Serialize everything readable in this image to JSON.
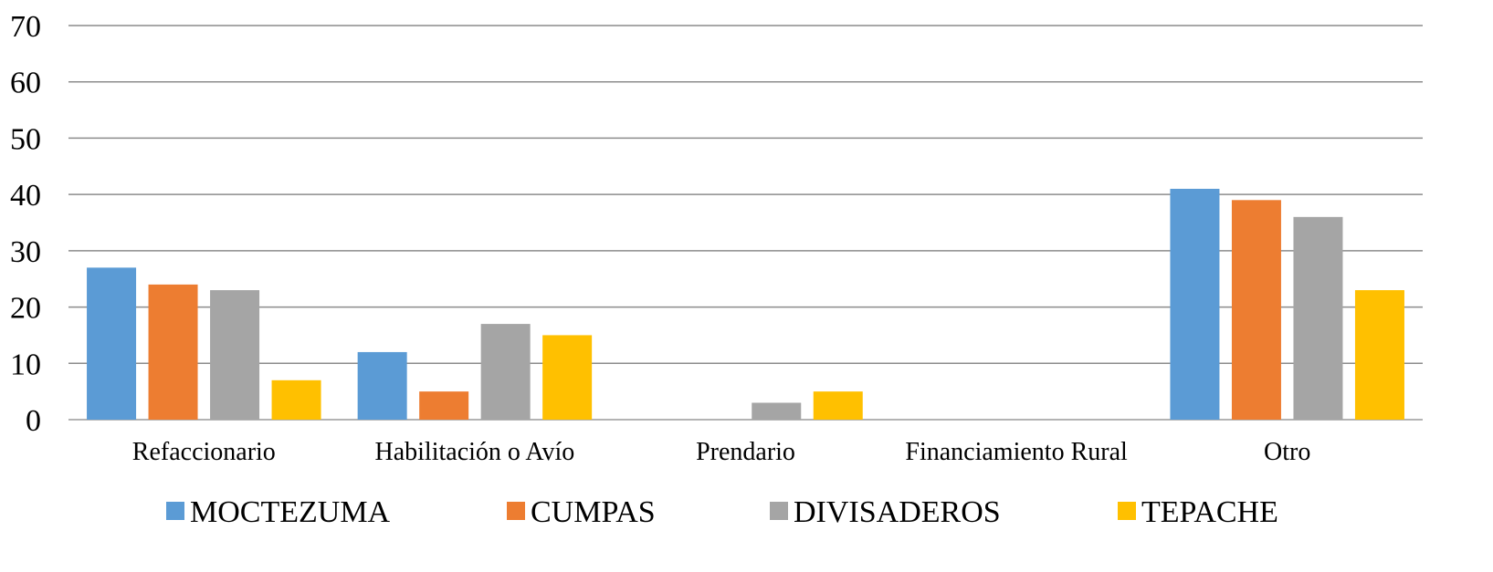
{
  "chart_data": {
    "type": "bar",
    "title": "",
    "xlabel": "",
    "ylabel": "",
    "ylim": [
      0,
      70
    ],
    "yticks": [
      0,
      10,
      20,
      30,
      40,
      50,
      60,
      70
    ],
    "grid": true,
    "legend_position": "bottom",
    "categories": [
      "Refaccionario",
      "Habilitación o Avío",
      "Prendario",
      "Financiamiento Rural",
      "Otro"
    ],
    "series": [
      {
        "name": "MOCTEZUMA",
        "color": "#5B9BD5",
        "values": [
          27,
          12,
          0,
          0,
          41
        ]
      },
      {
        "name": "CUMPAS",
        "color": "#ED7D31",
        "values": [
          24,
          5,
          0,
          0,
          39
        ]
      },
      {
        "name": "DIVISADEROS",
        "color": "#A5A5A5",
        "values": [
          23,
          17,
          3,
          0,
          36
        ]
      },
      {
        "name": "TEPACHE",
        "color": "#FFC000",
        "values": [
          7,
          15,
          5,
          0,
          23
        ]
      }
    ]
  }
}
